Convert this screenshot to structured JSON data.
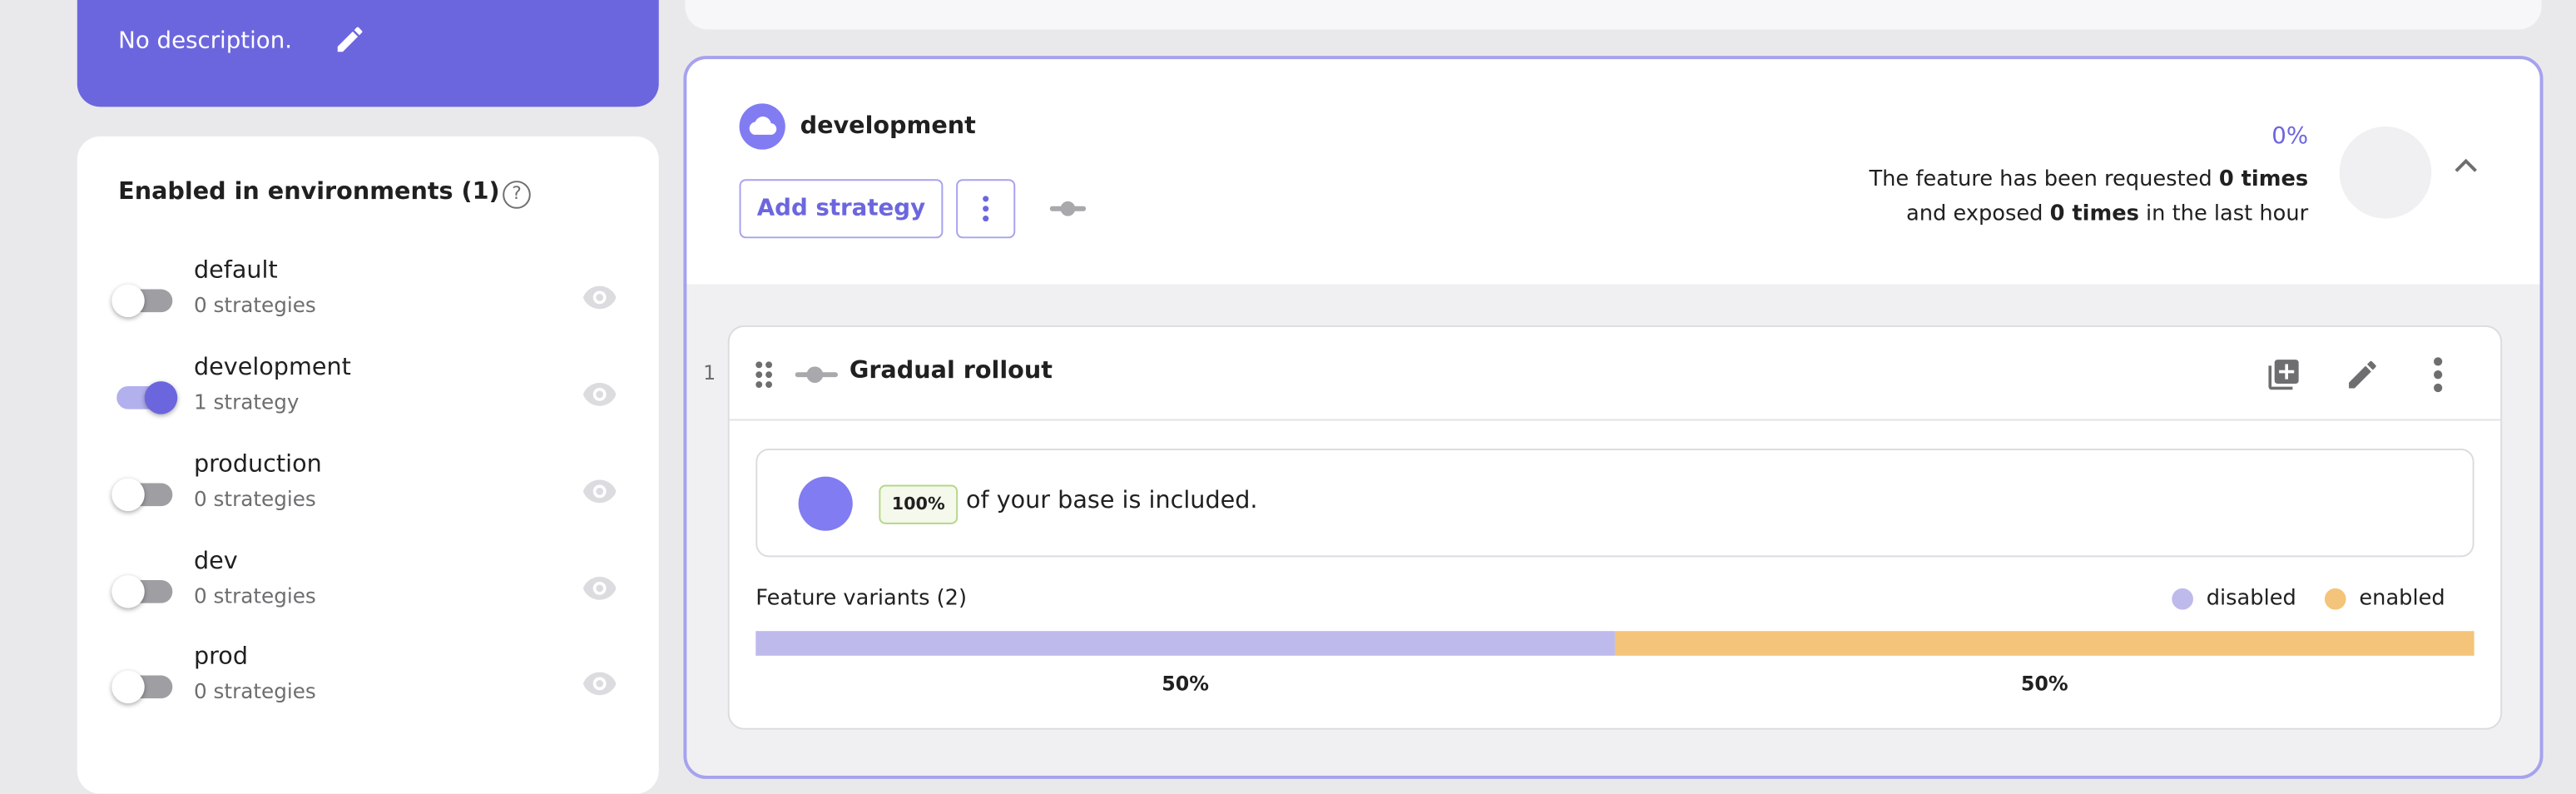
{
  "description": {
    "text": "No description.",
    "edit_icon": "pencil-icon"
  },
  "environments": {
    "title": "Enabled in environments (1)",
    "items": [
      {
        "name": "default",
        "strategies": "0 strategies",
        "enabled": false
      },
      {
        "name": "development",
        "strategies": "1 strategy",
        "enabled": true
      },
      {
        "name": "production",
        "strategies": "0 strategies",
        "enabled": false
      },
      {
        "name": "dev",
        "strategies": "0 strategies",
        "enabled": false
      },
      {
        "name": "prod",
        "strategies": "0 strategies",
        "enabled": false
      }
    ]
  },
  "env_panel": {
    "name": "development",
    "add_strategy": "Add strategy",
    "exposure_percent": "0%",
    "metrics_line1_pre": "The feature has been requested ",
    "metrics_line1_bold": "0 times",
    "metrics_line2_pre": "and exposed ",
    "metrics_line2_bold": "0 times",
    "metrics_line2_post": " in the last hour",
    "strategy": {
      "index": "1",
      "name": "Gradual rollout",
      "rollout_badge": "100%",
      "rollout_text": "of your base is included.",
      "variants_title": "Feature variants (2)",
      "variants": [
        {
          "name": "disabled",
          "percent": "50%",
          "weight": 50,
          "color": "#bebaec"
        },
        {
          "name": "enabled",
          "percent": "50%",
          "weight": 50,
          "color": "#f4c47a"
        }
      ]
    }
  },
  "colors": {
    "accent": "#6c66de",
    "accent_light": "#817cf2"
  }
}
